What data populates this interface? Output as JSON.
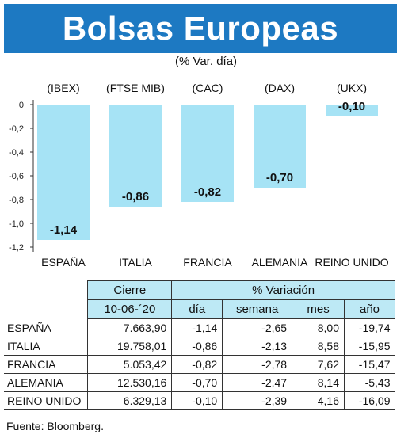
{
  "title": "Bolsas Europeas",
  "subtitle": "(% Var. día)",
  "chart_data": {
    "type": "bar",
    "categories": [
      "ESPAÑA",
      "ITALIA",
      "FRANCIA",
      "ALEMANIA",
      "REINO UNIDO"
    ],
    "indices": [
      "(IBEX)",
      "(FTSE MIB)",
      "(CAC)",
      "(DAX)",
      "(UKX)"
    ],
    "values": [
      -1.14,
      -0.86,
      -0.82,
      -0.7,
      -0.1
    ],
    "value_labels": [
      "-1,14",
      "-0,86",
      "-0,82",
      "-0,70",
      "-0,10"
    ],
    "yticks": [
      0,
      -0.2,
      -0.4,
      -0.6,
      -0.8,
      -1.0,
      -1.2
    ],
    "ytick_labels": [
      "0",
      "-0,2",
      "-0,4",
      "-0,6",
      "-0,8",
      "-1,0",
      "-1,2"
    ],
    "ylim": [
      -1.2,
      0
    ],
    "bar_color": "#a6e3f5",
    "grid": false
  },
  "table": {
    "header_cierre": "Cierre",
    "header_variacion": "% Variación",
    "date": "10-06-´20",
    "col_dia": "día",
    "col_semana": "semana",
    "col_mes": "mes",
    "col_ano": "año",
    "rows": [
      {
        "name": "ESPAÑA",
        "cierre": "7.663,90",
        "dia": "-1,14",
        "semana": "-2,65",
        "mes": "8,00",
        "ano": "-19,74"
      },
      {
        "name": "ITALIA",
        "cierre": "19.758,01",
        "dia": "-0,86",
        "semana": "-2,13",
        "mes": "8,58",
        "ano": "-15,95"
      },
      {
        "name": "FRANCIA",
        "cierre": "5.053,42",
        "dia": "-0,82",
        "semana": "-2,78",
        "mes": "7,62",
        "ano": "-15,47"
      },
      {
        "name": "ALEMANIA",
        "cierre": "12.530,16",
        "dia": "-0,70",
        "semana": "-2,47",
        "mes": "8,14",
        "ano": "-5,43"
      },
      {
        "name": "REINO UNIDO",
        "cierre": "6.329,13",
        "dia": "-0,10",
        "semana": "-2,39",
        "mes": "4,16",
        "ano": "-16,09"
      }
    ]
  },
  "source": "Fuente: Bloomberg."
}
